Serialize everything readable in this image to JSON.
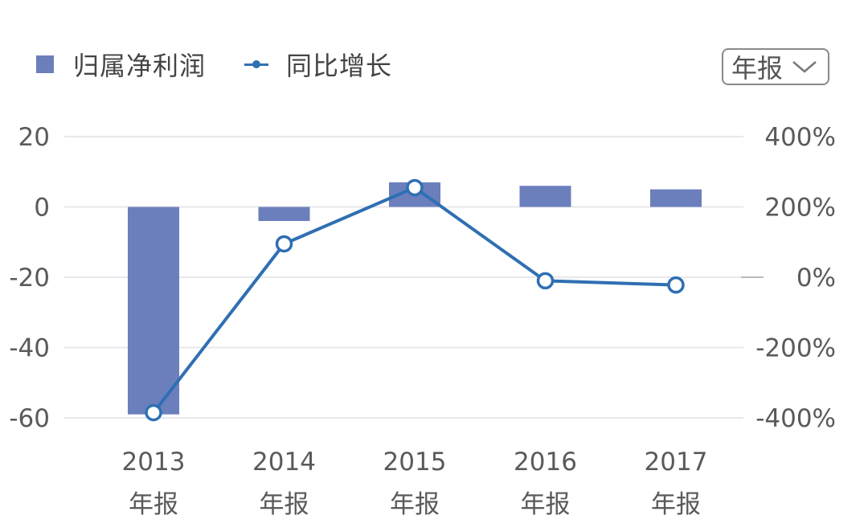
{
  "legend": {
    "bar_label": "归属净利润",
    "line_label": "同比增长"
  },
  "dropdown": {
    "selected": "年报"
  },
  "colors": {
    "bar": "#6b7fbd",
    "line": "#2f6fb3",
    "grid": "#e8e8ec",
    "text": "#5a5a5a"
  },
  "chart_data": {
    "type": "bar",
    "categories": [
      "2013\n年报",
      "2014\n年报",
      "2015\n年报",
      "2016\n年报",
      "2017\n年报"
    ],
    "category_years": [
      "2013",
      "2014",
      "2015",
      "2016",
      "2017"
    ],
    "category_suffix": "年报",
    "series": [
      {
        "name": "归属净利润",
        "type": "bar",
        "axis": "left",
        "values": [
          -59,
          -4,
          7,
          6,
          5
        ]
      },
      {
        "name": "同比增长",
        "type": "line",
        "axis": "right",
        "unit": "%",
        "values": [
          -385,
          95,
          255,
          -10,
          -22
        ]
      }
    ],
    "left_axis": {
      "ticks": [
        20,
        0,
        -20,
        -40,
        -60
      ],
      "range": [
        -60,
        20
      ]
    },
    "right_axis": {
      "ticks": [
        "400%",
        "200%",
        "0%",
        "-200%",
        "-400%"
      ],
      "range": [
        -400,
        400
      ]
    },
    "grid": true,
    "legend_position": "top-left"
  }
}
